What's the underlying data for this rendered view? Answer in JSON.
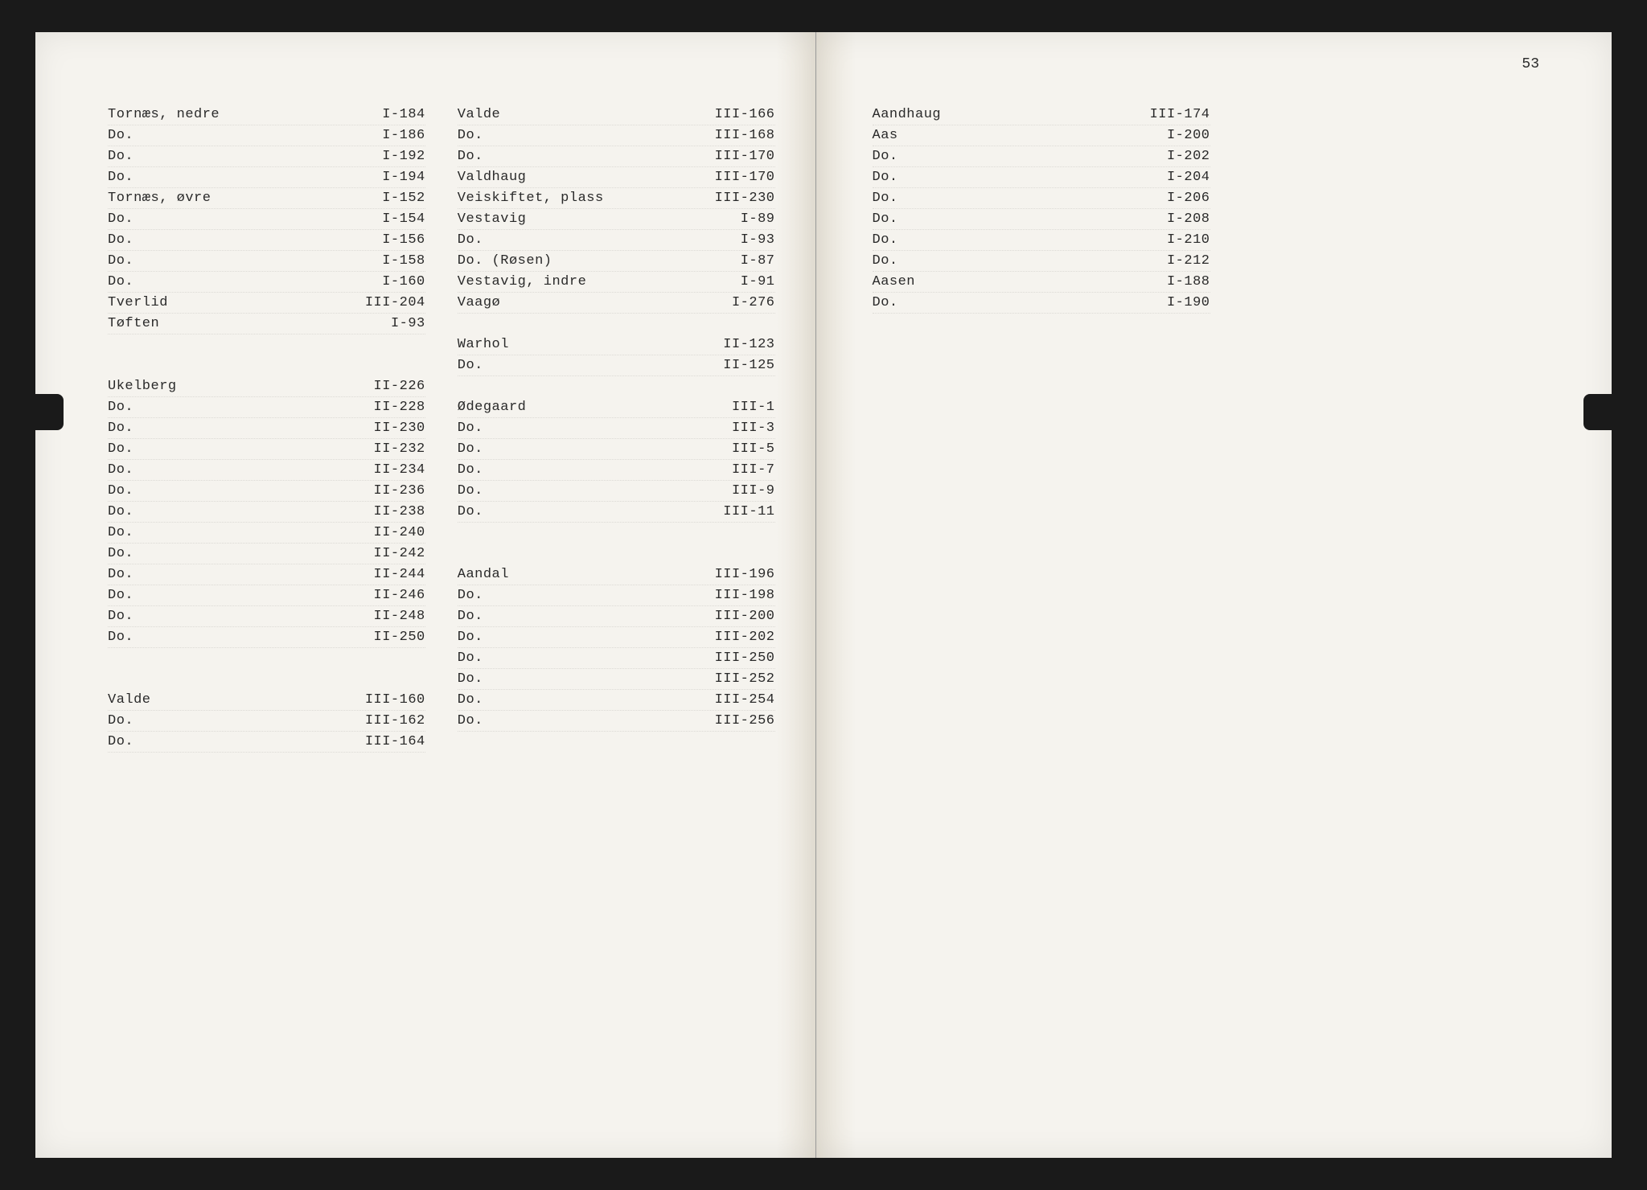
{
  "page_number": "53",
  "colors": {
    "paper": "#f5f3ee",
    "text": "#2a2a2a",
    "background": "#1a1a1a"
  },
  "typography": {
    "font_family": "Courier New",
    "font_size_pt": 12
  },
  "left_page": {
    "col1": [
      {
        "name": "Tornæs, nedre",
        "ref": "I-184"
      },
      {
        "name": "Do.",
        "ref": "I-186"
      },
      {
        "name": "Do.",
        "ref": "I-192"
      },
      {
        "name": "Do.",
        "ref": "I-194"
      },
      {
        "name": "Tornæs, øvre",
        "ref": "I-152"
      },
      {
        "name": "Do.",
        "ref": "I-154"
      },
      {
        "name": "Do.",
        "ref": "I-156"
      },
      {
        "name": "Do.",
        "ref": "I-158"
      },
      {
        "name": "Do.",
        "ref": "I-160"
      },
      {
        "name": "Tverlid",
        "ref": "III-204"
      },
      {
        "name": "Tøften",
        "ref": "I-93"
      },
      {
        "gap": true
      },
      {
        "gap": true
      },
      {
        "name": "Ukelberg",
        "ref": "II-226"
      },
      {
        "name": "Do.",
        "ref": "II-228"
      },
      {
        "name": "Do.",
        "ref": "II-230"
      },
      {
        "name": "Do.",
        "ref": "II-232"
      },
      {
        "name": "Do.",
        "ref": "II-234"
      },
      {
        "name": "Do.",
        "ref": "II-236"
      },
      {
        "name": "Do.",
        "ref": "II-238"
      },
      {
        "name": "Do.",
        "ref": "II-240"
      },
      {
        "name": "Do.",
        "ref": "II-242"
      },
      {
        "name": "Do.",
        "ref": "II-244"
      },
      {
        "name": "Do.",
        "ref": "II-246"
      },
      {
        "name": "Do.",
        "ref": "II-248"
      },
      {
        "name": "Do.",
        "ref": "II-250"
      },
      {
        "gap": true
      },
      {
        "gap": true
      },
      {
        "name": "Valde",
        "ref": "III-160"
      },
      {
        "name": "Do.",
        "ref": "III-162"
      },
      {
        "name": "Do.",
        "ref": "III-164"
      }
    ],
    "col2": [
      {
        "name": "Valde",
        "ref": "III-166"
      },
      {
        "name": "Do.",
        "ref": "III-168"
      },
      {
        "name": "Do.",
        "ref": "III-170"
      },
      {
        "name": "Valdhaug",
        "ref": "III-170"
      },
      {
        "name": "Veiskiftet, plass",
        "ref": "III-230"
      },
      {
        "name": "Vestavig",
        "ref": "I-89"
      },
      {
        "name": "Do.",
        "ref": "I-93"
      },
      {
        "name": "Do.  (Røsen)",
        "ref": "I-87"
      },
      {
        "name": "Vestavig, indre",
        "ref": "I-91"
      },
      {
        "name": "Vaagø",
        "ref": "I-276"
      },
      {
        "gap": true
      },
      {
        "name": "Warhol",
        "ref": "II-123"
      },
      {
        "name": "Do.",
        "ref": "II-125"
      },
      {
        "gap": true
      },
      {
        "name": "Ødegaard",
        "ref": "III-1"
      },
      {
        "name": "Do.",
        "ref": "III-3"
      },
      {
        "name": "Do.",
        "ref": "III-5"
      },
      {
        "name": "Do.",
        "ref": "III-7"
      },
      {
        "name": "Do.",
        "ref": "III-9"
      },
      {
        "name": "Do.",
        "ref": "III-11"
      },
      {
        "gap": true
      },
      {
        "gap": true
      },
      {
        "name": "Aandal",
        "ref": "III-196"
      },
      {
        "name": "Do.",
        "ref": "III-198"
      },
      {
        "name": "Do.",
        "ref": "III-200"
      },
      {
        "name": "Do.",
        "ref": "III-202"
      },
      {
        "name": "Do.",
        "ref": "III-250"
      },
      {
        "name": "Do.",
        "ref": "III-252"
      },
      {
        "name": "Do.",
        "ref": "III-254"
      },
      {
        "name": "Do.",
        "ref": "III-256"
      }
    ]
  },
  "right_page": {
    "col1": [
      {
        "name": "Aandhaug",
        "ref": "III-174"
      },
      {
        "name": "Aas",
        "ref": "I-200"
      },
      {
        "name": "Do.",
        "ref": "I-202"
      },
      {
        "name": "Do.",
        "ref": "I-204"
      },
      {
        "name": "Do.",
        "ref": "I-206"
      },
      {
        "name": "Do.",
        "ref": "I-208"
      },
      {
        "name": "Do.",
        "ref": "I-210"
      },
      {
        "name": "Do.",
        "ref": "I-212"
      },
      {
        "name": "Aasen",
        "ref": "I-188"
      },
      {
        "name": "Do.",
        "ref": "I-190"
      }
    ]
  }
}
